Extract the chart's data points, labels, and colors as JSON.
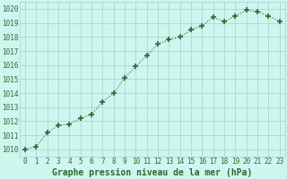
{
  "x": [
    0,
    1,
    2,
    3,
    4,
    5,
    6,
    7,
    8,
    9,
    10,
    11,
    12,
    13,
    14,
    15,
    16,
    17,
    18,
    19,
    20,
    21,
    22,
    23
  ],
  "y": [
    1010.0,
    1010.2,
    1011.2,
    1011.7,
    1011.8,
    1012.2,
    1012.5,
    1013.4,
    1014.0,
    1015.1,
    1015.9,
    1016.7,
    1017.5,
    1017.8,
    1018.0,
    1018.5,
    1018.8,
    1019.4,
    1019.1,
    1019.5,
    1019.9,
    1019.8,
    1019.5,
    1019.1
  ],
  "line_color": "#2d6a2d",
  "marker": "+",
  "marker_size": 4,
  "linewidth": 0.8,
  "background_color": "#cef5ee",
  "grid_color": "#aacfca",
  "xlabel": "Graphe pression niveau de la mer (hPa)",
  "xlabel_fontsize": 7,
  "xlabel_color": "#2d6a2d",
  "ylabel_ticks": [
    1010,
    1011,
    1012,
    1013,
    1014,
    1015,
    1016,
    1017,
    1018,
    1019,
    1020
  ],
  "xticks": [
    0,
    1,
    2,
    3,
    4,
    5,
    6,
    7,
    8,
    9,
    10,
    11,
    12,
    13,
    14,
    15,
    16,
    17,
    18,
    19,
    20,
    21,
    22,
    23
  ],
  "ylim": [
    1009.5,
    1020.5
  ],
  "xlim": [
    -0.5,
    23.5
  ],
  "tick_fontsize": 5.5,
  "tick_color": "#2d6a2d"
}
